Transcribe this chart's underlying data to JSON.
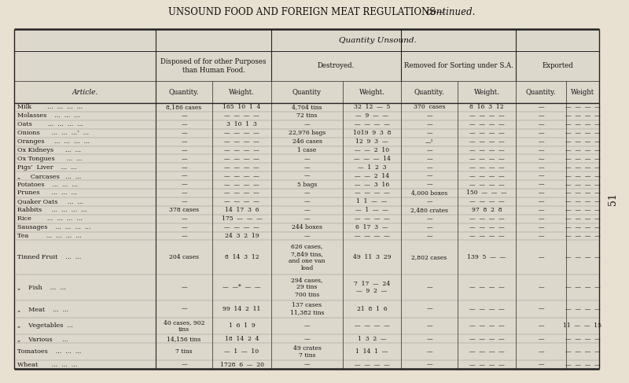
{
  "title": "UNSOUND FOOD AND FOREIGN MEAT REGULATIONS—",
  "title2": "continued.",
  "bg_color": "#c8c0b0",
  "table_bg": "#d4ccbc",
  "paper_color": "#e8e0d0",
  "header1": "Quantity Unsound.",
  "header2_cols": [
    "Disposed of for other Purposes\nthan Human Food.",
    "Destroyed.",
    "Removed for Sorting under S.A.",
    "Exported"
  ],
  "sub_headers": [
    "Quantity.",
    "Weight.",
    "Quantity",
    "Weight.",
    "Quantity.",
    "Weight.",
    "Quantity.",
    "Weight"
  ],
  "article_header": "Article.",
  "articles": [
    "Milk        ...  ...  ...  ...",
    "Molasses    ...  ...  ...",
    "Oats        ...  ...  ...  ...",
    "Onions      ...  ...  ...’  ...",
    "Oranges     ...  ...  ...  ...",
    "Ox Kidneys      ...  ...",
    "Ox Tongues      ...  ...",
    "Pigs’  Liver    ...  ...",
    "„     Carcases   ...  ...",
    "Potatoes    ...  ...  ...",
    "Prunes      ...  ...  ...",
    "Quaker Oats     ...  ...",
    "Rabbits     ...  ...  ...  ...",
    "Rice        ...  ...  ...  ...",
    "Sausages    ...  ...  ...  ...",
    "Tea         ...  ...  ...  ...",
    "Tinned Fruit    ...  ...",
    "„    Fish    ...  ...",
    "„    Meat    ...  ...",
    "„    Vegetables  ...",
    "„    Various     ...",
    "Tomatoes    ...  ...  ...",
    "Wheat       ...  ...  ..."
  ],
  "rows": [
    [
      "8,186 cases",
      "165  10  1  4",
      "4,704 tins",
      "32  12  —  5",
      "370  cases",
      "8  16  3  12",
      "—",
      "—  —  —  —"
    ],
    [
      "—",
      "—  —  —  —",
      "72 tins",
      "—  9  —  —",
      "—",
      "—  —  —  —",
      "—",
      "—  —  —  —"
    ],
    [
      "—",
      "3  10  1  3",
      "—",
      "—  —  —  —",
      "—",
      "—  —  —  —",
      "—",
      "—  —  —  —"
    ],
    [
      "—",
      "—  —  —  —",
      "22,976 bags",
      "1019  9  3  8",
      "—",
      "—  —  —  —",
      "—",
      "—  —  —  —"
    ],
    [
      "—",
      "—  —  —  —",
      "246 cases",
      "12  9  3  —",
      "—¹",
      "—  —  —  —",
      "—",
      "—  —  —  —"
    ],
    [
      "—",
      "—  —  —  —",
      "1 case",
      "—  —  2  10",
      "—",
      "—  —  —  —",
      "—",
      "—  —  —  —"
    ],
    [
      "—",
      "—  —  —  —",
      "—",
      "—  —  —  14",
      "—",
      "—  —  —  —",
      "—",
      "—  —  —  —"
    ],
    [
      "—",
      "—  —  —  —",
      "—",
      "—  1  2  3",
      "—",
      "—  —  —  —",
      "—",
      "—  —  —  —"
    ],
    [
      "—",
      "—  —  —  —",
      "—",
      "—  —  2  14",
      "—",
      "—  —  —  —",
      "—",
      "—  —  —  —"
    ],
    [
      "—",
      "—  —  —  —",
      "5 bags",
      "—  —  3  16",
      "—",
      "—  —  —  —",
      "—",
      "—  —  —  —"
    ],
    [
      "—",
      "—  —  —  —",
      "—",
      "—  —  —  —",
      "4,000 boxes",
      "150  —  —  —",
      "—",
      "—  —  —  —"
    ],
    [
      "—",
      "—  —  —  —",
      "—",
      "1  1  —  —",
      "—",
      "—  —  —  —",
      "—",
      "—  —  —  —"
    ],
    [
      "378 cases",
      "14  17  3  6",
      "—",
      "—  1  —  —",
      "2,480 crates",
      "97  8  2  8",
      "—",
      "—  —  —  —"
    ],
    [
      "—",
      "175  —  —  —",
      "—",
      "—  —  —  —",
      "—",
      "—  —  —  —",
      "—",
      "—  —  —  —"
    ],
    [
      "—",
      "—  —  —  —",
      "244 boxes",
      "6  17  3  —",
      "—",
      "—  —  —  —",
      "—",
      "—  —  —  —"
    ],
    [
      "—",
      "24  3  2  19",
      "—",
      "—  —  —  —",
      "—",
      "—  —  —  —",
      "—",
      "—  —  —  —"
    ],
    [
      "204 cases",
      "8  14  3  12",
      "626 cases,\n7,849 tins,\nand one van\nload",
      "49  11  3  29",
      "2,802 cases",
      "139  5  —  —",
      "—",
      "—  —  —  —"
    ],
    [
      "—",
      "—  —*  —  —",
      "294 cases,\n29 tins\n700 tins",
      "7  17  —  24\n—  9  2  —",
      "—",
      "—  —  —  —",
      "—",
      "—  —  —  —"
    ],
    [
      "—",
      "99  14  2  11",
      "137 cases\n11,382 tins",
      "21  8  1  6",
      "—",
      "—  —  —  —",
      "—",
      "—  —  —  —"
    ],
    [
      "40 cases, 902\ntins",
      "1  6  1  9",
      "—",
      "—  —  —  —",
      "—",
      "—  —  —  —",
      "—",
      "11  —  —  15"
    ],
    [
      "14,156 tins",
      "18  14  2  4",
      "—",
      "1  3  2  —",
      "—",
      "—  —  —  —",
      "—",
      "—  —  —  —"
    ],
    [
      "7 tins",
      "—  1  —  10",
      "49 crates\n7 tins",
      "1  14  1  —",
      "—",
      "—  —  —  —",
      "—",
      "—  —  —  —"
    ],
    [
      "—",
      "1728  6  —  20",
      "—",
      "—  —  —  —",
      "—",
      "—  —  —  —",
      "—",
      "—  —  —  —"
    ]
  ],
  "multiline_rows": {
    "16": 4,
    "17": 3,
    "18": 2,
    "19": 2,
    "21": 2
  },
  "page_number": "51"
}
